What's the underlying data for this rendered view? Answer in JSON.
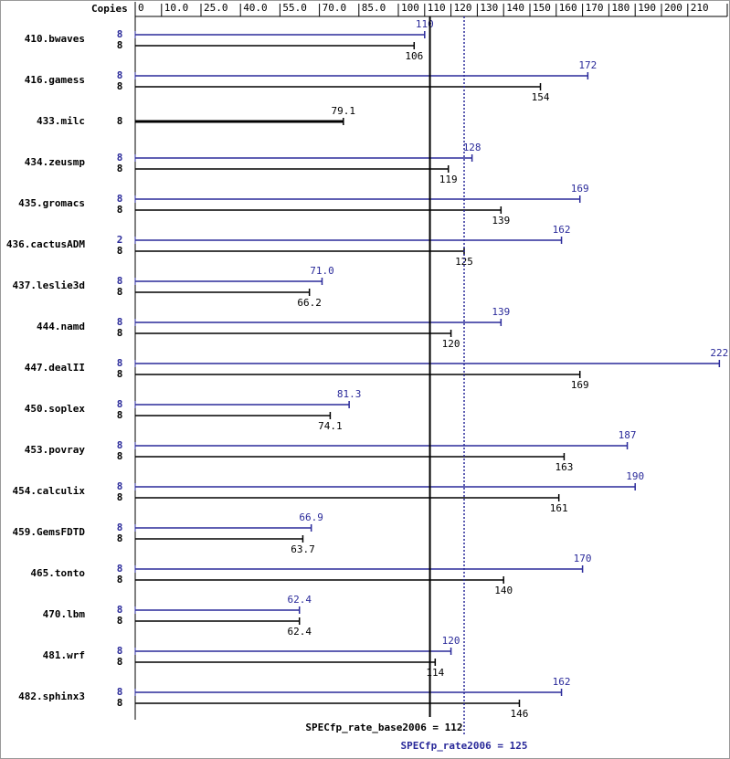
{
  "chart_data": {
    "type": "spec-bars",
    "axis_title": "Copies",
    "categories": [
      "410.bwaves",
      "416.gamess",
      "433.milc",
      "434.zeusmp",
      "435.gromacs",
      "436.cactusADM",
      "437.leslie3d",
      "444.namd",
      "447.dealII",
      "450.soplex",
      "453.povray",
      "454.calculix",
      "459.GemsFDTD",
      "465.tonto",
      "470.lbm",
      "481.wrf",
      "482.sphinx3"
    ],
    "series": [
      {
        "color": "#2a2a9a",
        "copies": [
          8,
          8,
          null,
          8,
          8,
          2,
          8,
          8,
          8,
          8,
          8,
          8,
          8,
          8,
          8,
          8,
          8
        ],
        "values": [
          110,
          172,
          null,
          128,
          169,
          162,
          71,
          139,
          222,
          81.3,
          187,
          190,
          66.9,
          170,
          62.4,
          120,
          162
        ],
        "value_labels": [
          "110",
          "172",
          null,
          "128",
          "169",
          "162",
          "71.0",
          "139",
          "222",
          "81.3",
          "187",
          "190",
          "66.9",
          "170",
          "62.4",
          "120",
          "162"
        ]
      },
      {
        "color": "#000000",
        "copies": [
          8,
          8,
          8,
          8,
          8,
          8,
          8,
          8,
          8,
          8,
          8,
          8,
          8,
          8,
          8,
          8,
          8
        ],
        "values": [
          106,
          154,
          79.1,
          119,
          139,
          125,
          66.2,
          120,
          169,
          74.1,
          163,
          161,
          63.7,
          140,
          62.4,
          114,
          146
        ]
      }
    ],
    "xlim": [
      0,
      225
    ],
    "xticks": [
      0,
      {
        "value": 10,
        "label": "10.0"
      },
      {
        "value": 25,
        "label": "25.0"
      },
      {
        "value": 40,
        "label": "40.0"
      },
      {
        "value": 55,
        "label": "55.0"
      },
      {
        "value": 70,
        "label": "70.0"
      },
      {
        "value": 85,
        "label": "85.0"
      },
      100,
      110,
      120,
      130,
      140,
      150,
      160,
      170,
      180,
      190,
      200,
      210,
      225
    ],
    "reference_lines": [
      {
        "label": "SPECfp_rate_base2006 = 112",
        "value": 112,
        "color": "#000000",
        "dashed": false
      },
      {
        "label": "SPECfp_rate2006 = 125",
        "value": 125,
        "color": "#2a2a9a",
        "dashed": true
      }
    ]
  }
}
